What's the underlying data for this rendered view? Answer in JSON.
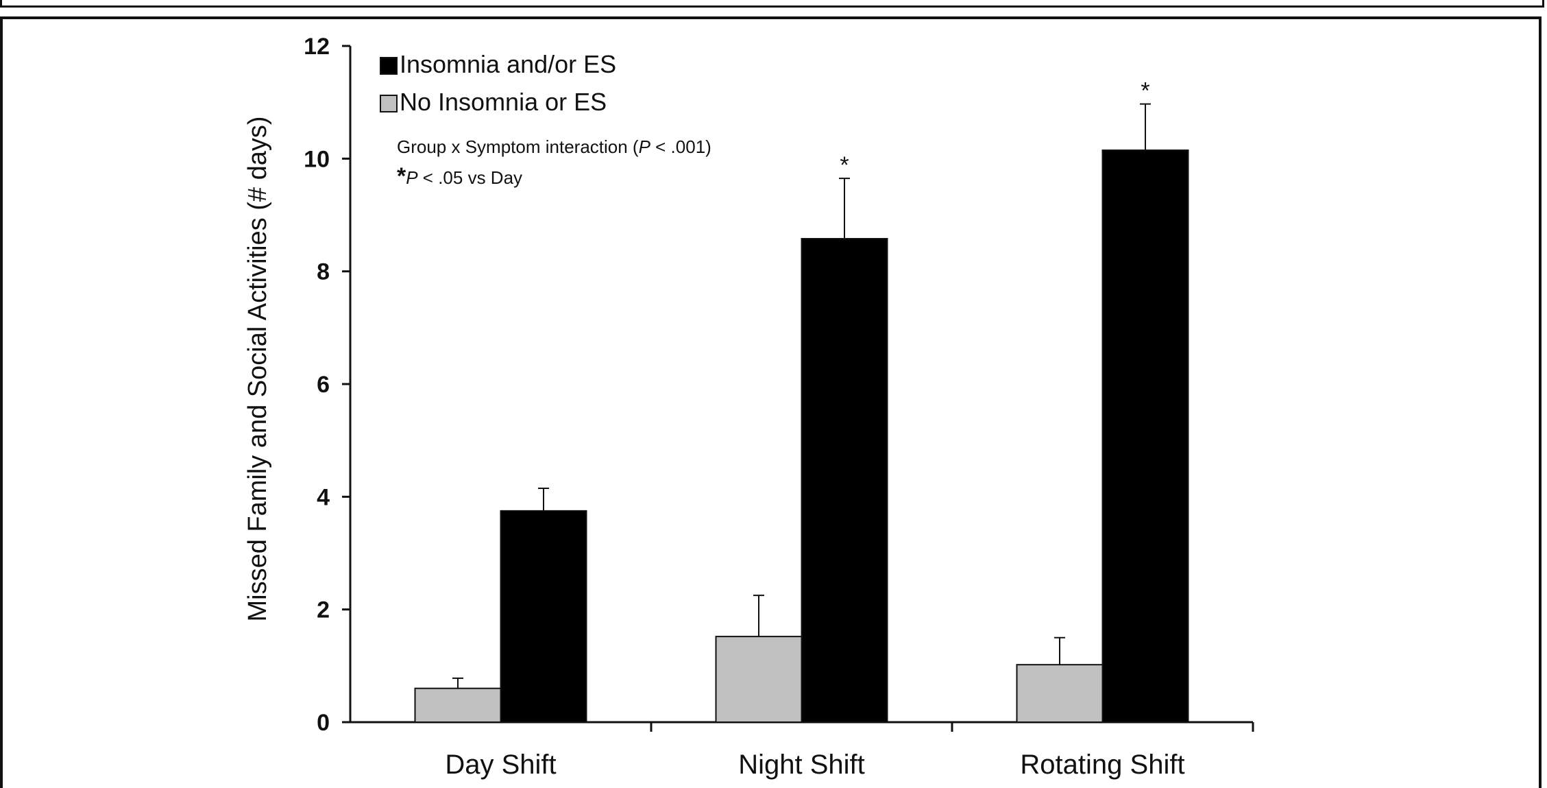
{
  "chart_data": {
    "type": "bar",
    "ylabel": "Missed Family and Social Activities (# days)",
    "xlabel": "",
    "ylim": [
      0,
      12
    ],
    "yticks": [
      0,
      2,
      4,
      6,
      8,
      10,
      12
    ],
    "grid": false,
    "legend_position": "top-left",
    "categories": [
      "Day Shift",
      "Night Shift",
      "Rotating Shift"
    ],
    "series": [
      {
        "name": "No Insomnia or ES",
        "color": "#c0c0c0",
        "values": [
          0.6,
          1.52,
          1.02
        ],
        "error": [
          0.18,
          0.73,
          0.48
        ]
      },
      {
        "name": "Insomnia and/or ES",
        "color": "#000000",
        "values": [
          3.75,
          8.58,
          10.15
        ],
        "error": [
          0.4,
          1.07,
          0.82
        ]
      }
    ],
    "significance": [
      "",
      "*",
      "*"
    ],
    "annotations": {
      "line1_pre": "Group x Symptom interaction (",
      "line1_p": "P",
      "line1_post": " < .001)",
      "line2_star": "*",
      "line2_p": "P",
      "line2_post": " < .05 vs Day"
    }
  }
}
